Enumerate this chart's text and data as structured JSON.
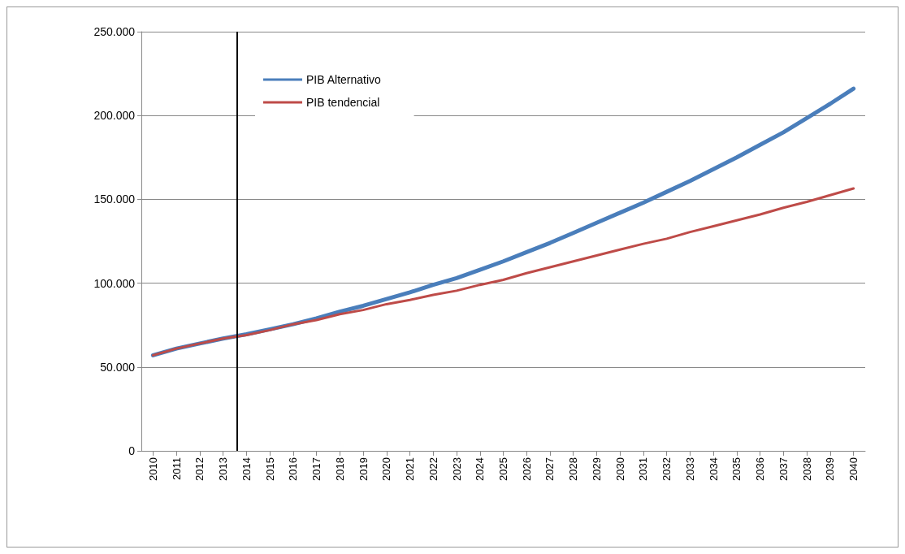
{
  "chart_data": {
    "type": "line",
    "x": [
      2010,
      2011,
      2012,
      2013,
      2014,
      2015,
      2016,
      2017,
      2018,
      2019,
      2020,
      2021,
      2022,
      2023,
      2024,
      2025,
      2026,
      2027,
      2028,
      2029,
      2030,
      2031,
      2032,
      2033,
      2034,
      2035,
      2036,
      2037,
      2038,
      2039,
      2040
    ],
    "series": [
      {
        "name": "PIB Alternativo",
        "color": "#4a7ebb",
        "values": [
          57000,
          61000,
          64000,
          67000,
          69500,
          72500,
          75500,
          79000,
          83000,
          86500,
          90500,
          94500,
          99000,
          103000,
          108000,
          113000,
          118500,
          124000,
          130000,
          136000,
          142000,
          148000,
          154500,
          161000,
          168000,
          175000,
          182500,
          190000,
          198500,
          207000,
          216000
        ]
      },
      {
        "name": "PIB tendencial",
        "color": "#be4b48",
        "values": [
          57000,
          61000,
          64000,
          67000,
          69000,
          72000,
          75500,
          78000,
          81500,
          84000,
          87500,
          90000,
          93000,
          95500,
          99000,
          102000,
          106000,
          109500,
          113000,
          116500,
          120000,
          123500,
          126500,
          130500,
          134000,
          137500,
          141000,
          145000,
          148500,
          152500,
          156500
        ]
      }
    ],
    "xlim": [
      2009.5,
      2040.5
    ],
    "xticks": [
      2010,
      2011,
      2012,
      2013,
      2014,
      2015,
      2016,
      2017,
      2018,
      2019,
      2020,
      2021,
      2022,
      2023,
      2024,
      2025,
      2026,
      2027,
      2028,
      2029,
      2030,
      2031,
      2032,
      2033,
      2034,
      2035,
      2036,
      2037,
      2038,
      2039,
      2040
    ],
    "ylim": [
      0,
      250000
    ],
    "yticks": [
      0,
      {
        "value": 50000,
        "label": "50.000"
      },
      {
        "value": 100000,
        "label": "100.000"
      },
      {
        "value": 150000,
        "label": "150.000"
      },
      {
        "value": 200000,
        "label": "200.000"
      },
      {
        "value": 250000,
        "label": "250.000"
      }
    ],
    "ref_lines": [
      {
        "axis": "x",
        "value": 2013.6,
        "color": "#000000"
      }
    ],
    "grid": "y",
    "legend": "top left",
    "marker": "none",
    "line_style": "solid"
  }
}
